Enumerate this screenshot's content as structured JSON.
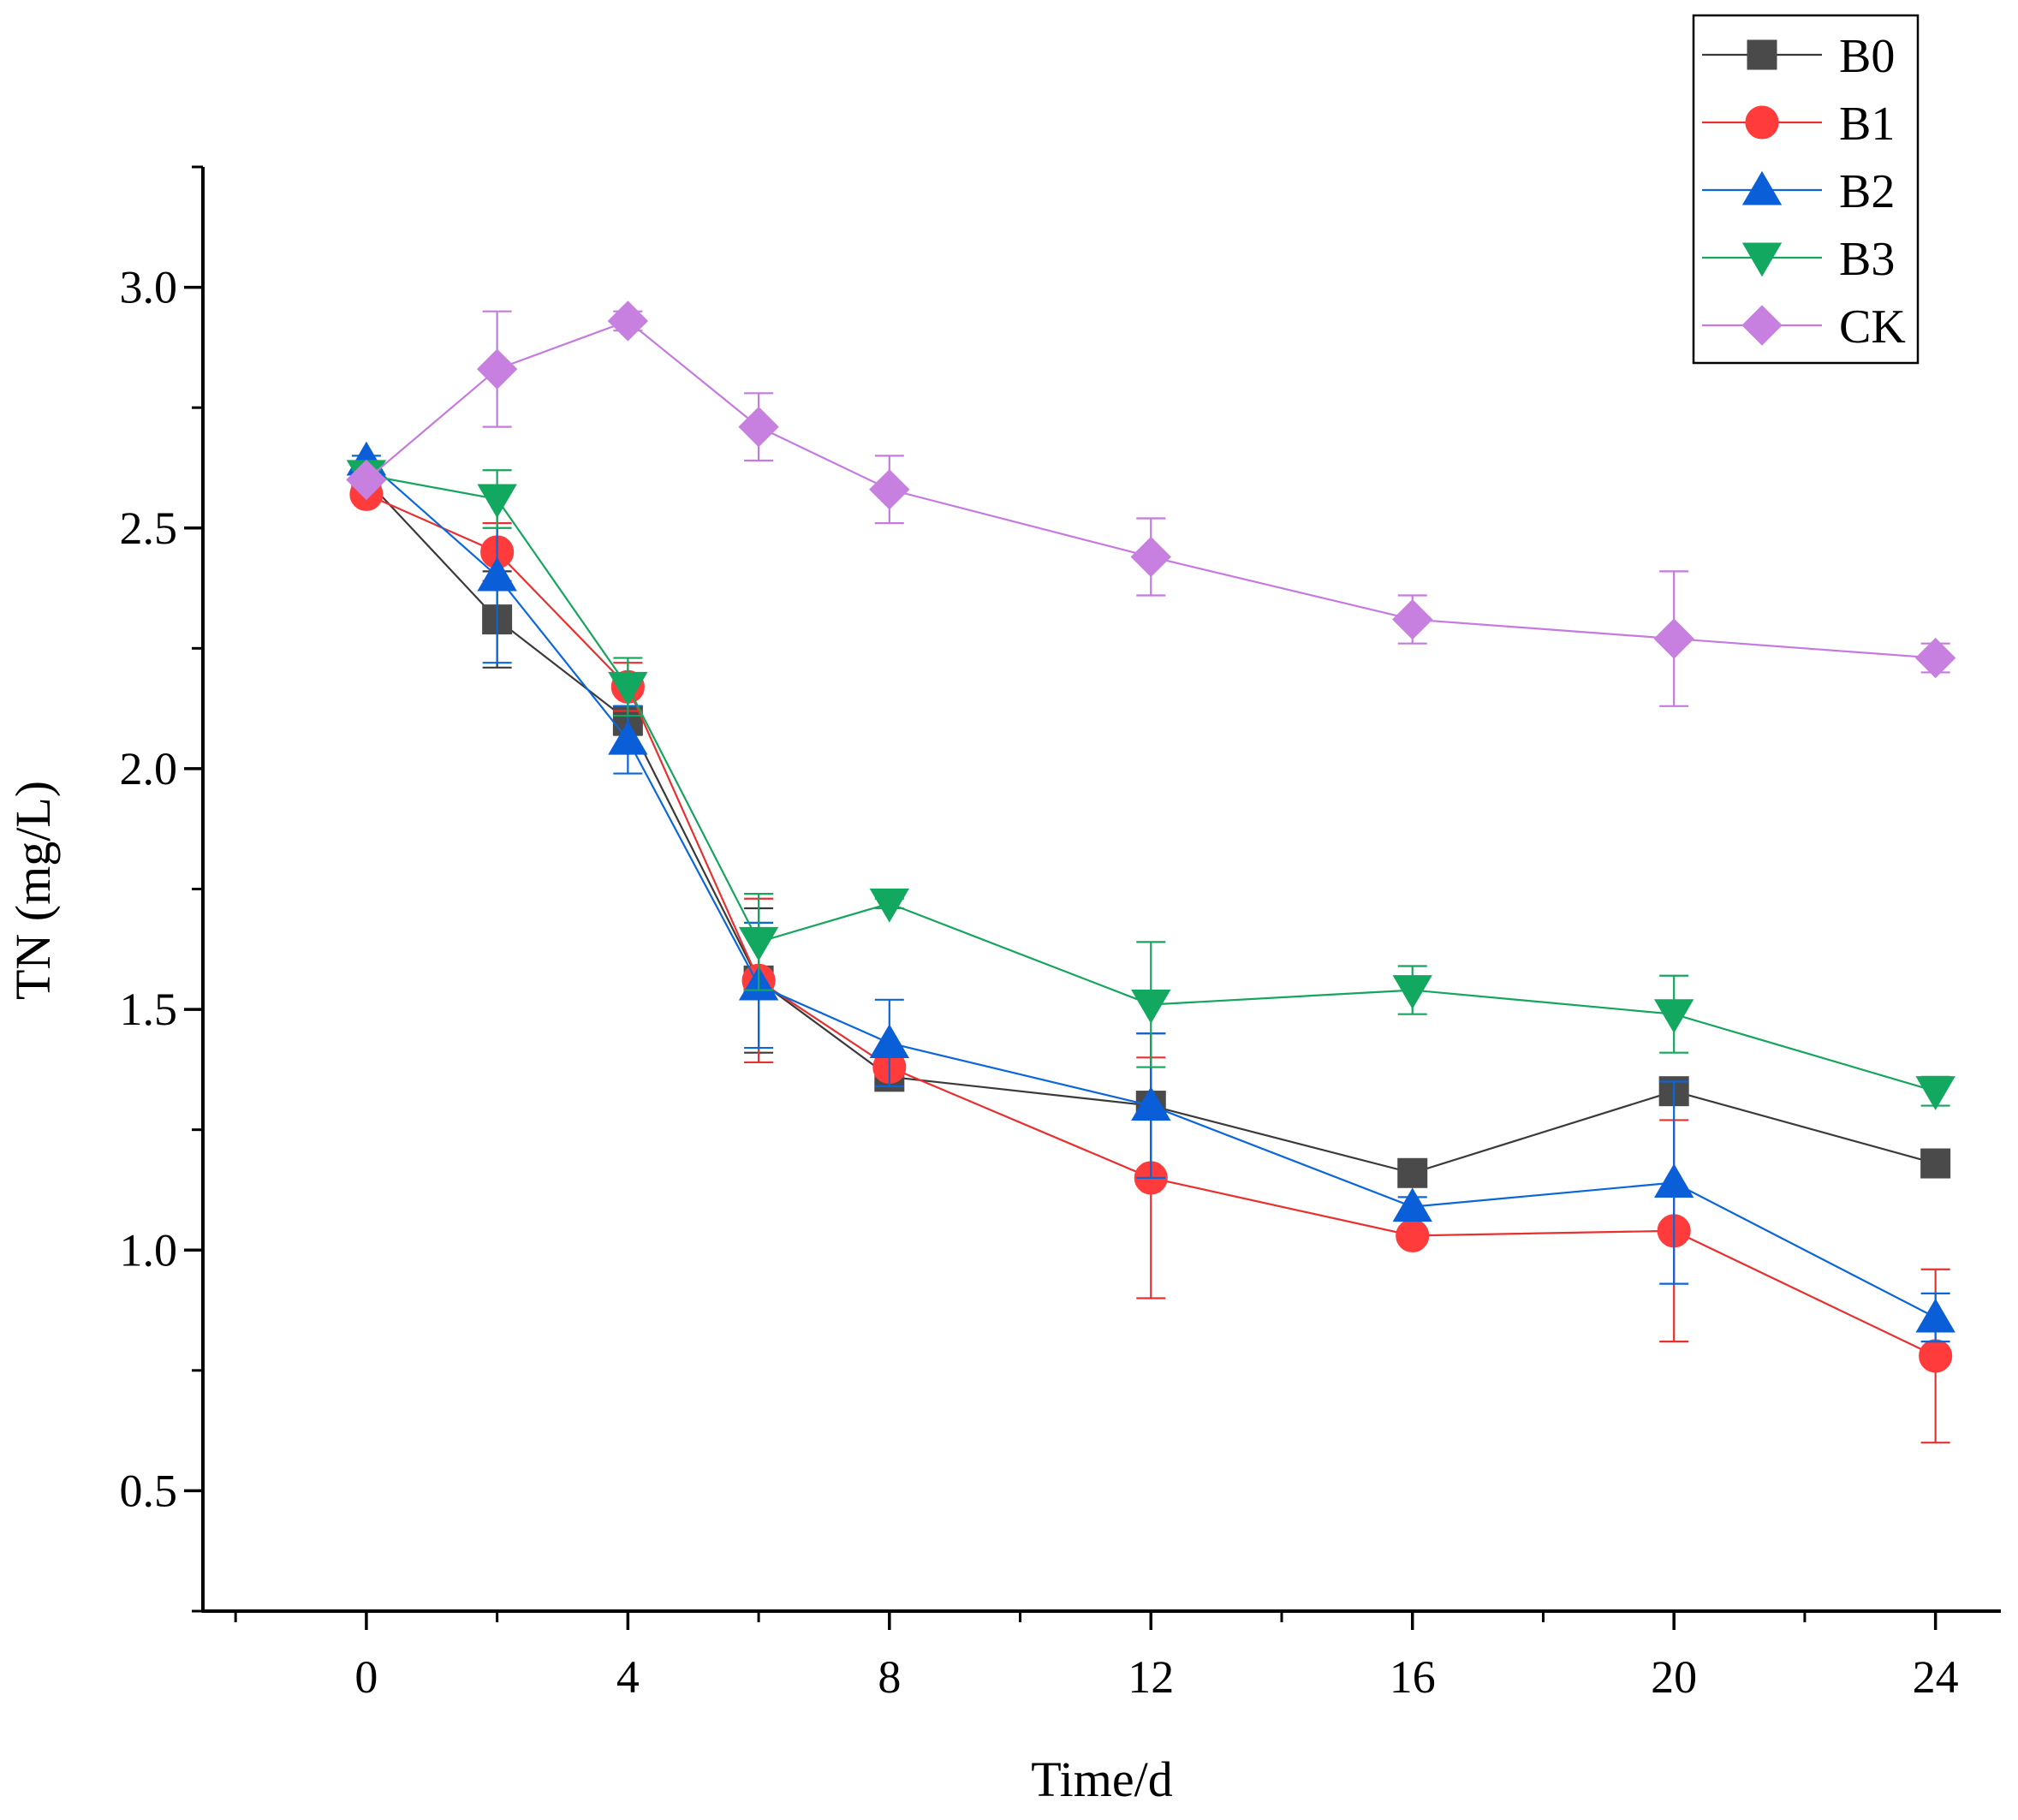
{
  "chart_data": {
    "type": "line",
    "title": "",
    "xlabel": "Time/d",
    "ylabel": "TN (mg/L)",
    "xlim": [
      -2.5,
      25
    ],
    "ylim": [
      0.25,
      3.25
    ],
    "x_ticks": [
      0,
      4,
      8,
      12,
      16,
      20,
      24
    ],
    "x_tick_labels": [
      "0",
      "4",
      "8",
      "12",
      "16",
      "20",
      "24"
    ],
    "y_ticks": [
      0.5,
      1.0,
      1.5,
      2.0,
      2.5,
      3.0
    ],
    "y_tick_labels": [
      "0.5",
      "1.0",
      "1.5",
      "2.0",
      "2.5",
      "3.0"
    ],
    "legend_position": "top-right",
    "x": [
      0,
      2,
      4,
      6,
      8,
      12,
      16,
      20,
      24
    ],
    "series": [
      {
        "name": "B0",
        "color": "#4a4a4a",
        "line_color": "#3a3a3a",
        "marker": "square",
        "values": [
          2.6,
          2.31,
          2.1,
          1.56,
          1.36,
          1.3,
          1.16,
          1.33,
          1.18
        ],
        "errors": [
          0.01,
          0.1,
          0.03,
          0.15,
          0.02,
          0.15,
          0.02,
          0.02,
          0.02
        ]
      },
      {
        "name": "B1",
        "color": "#ff3b3b",
        "line_color": "#e83030",
        "marker": "circle",
        "values": [
          2.57,
          2.45,
          2.17,
          1.56,
          1.38,
          1.15,
          1.03,
          1.04,
          0.78
        ],
        "errors": [
          0.01,
          0.06,
          0.05,
          0.17,
          0.02,
          0.25,
          0.01,
          0.23,
          0.18
        ]
      },
      {
        "name": "B2",
        "color": "#0a5fd8",
        "line_color": "#0a66d9",
        "marker": "triangle-up",
        "values": [
          2.64,
          2.4,
          2.06,
          1.55,
          1.43,
          1.3,
          1.09,
          1.14,
          0.86
        ],
        "errors": [
          0.01,
          0.18,
          0.07,
          0.13,
          0.09,
          0.15,
          0.02,
          0.21,
          0.05
        ]
      },
      {
        "name": "B3",
        "color": "#12a860",
        "line_color": "#16a55e",
        "marker": "triangle-down",
        "values": [
          2.61,
          2.56,
          2.17,
          1.64,
          1.72,
          1.51,
          1.54,
          1.49,
          1.33
        ],
        "errors": [
          0.01,
          0.06,
          0.06,
          0.1,
          0.01,
          0.13,
          0.05,
          0.08,
          0.03
        ]
      },
      {
        "name": "CK",
        "color": "#c77fe0",
        "line_color": "#c57ae0",
        "marker": "diamond",
        "values": [
          2.6,
          2.83,
          2.93,
          2.71,
          2.58,
          2.44,
          2.31,
          2.27,
          2.23
        ],
        "errors": [
          0.01,
          0.12,
          0.02,
          0.07,
          0.07,
          0.08,
          0.05,
          0.14,
          0.03
        ]
      }
    ]
  }
}
